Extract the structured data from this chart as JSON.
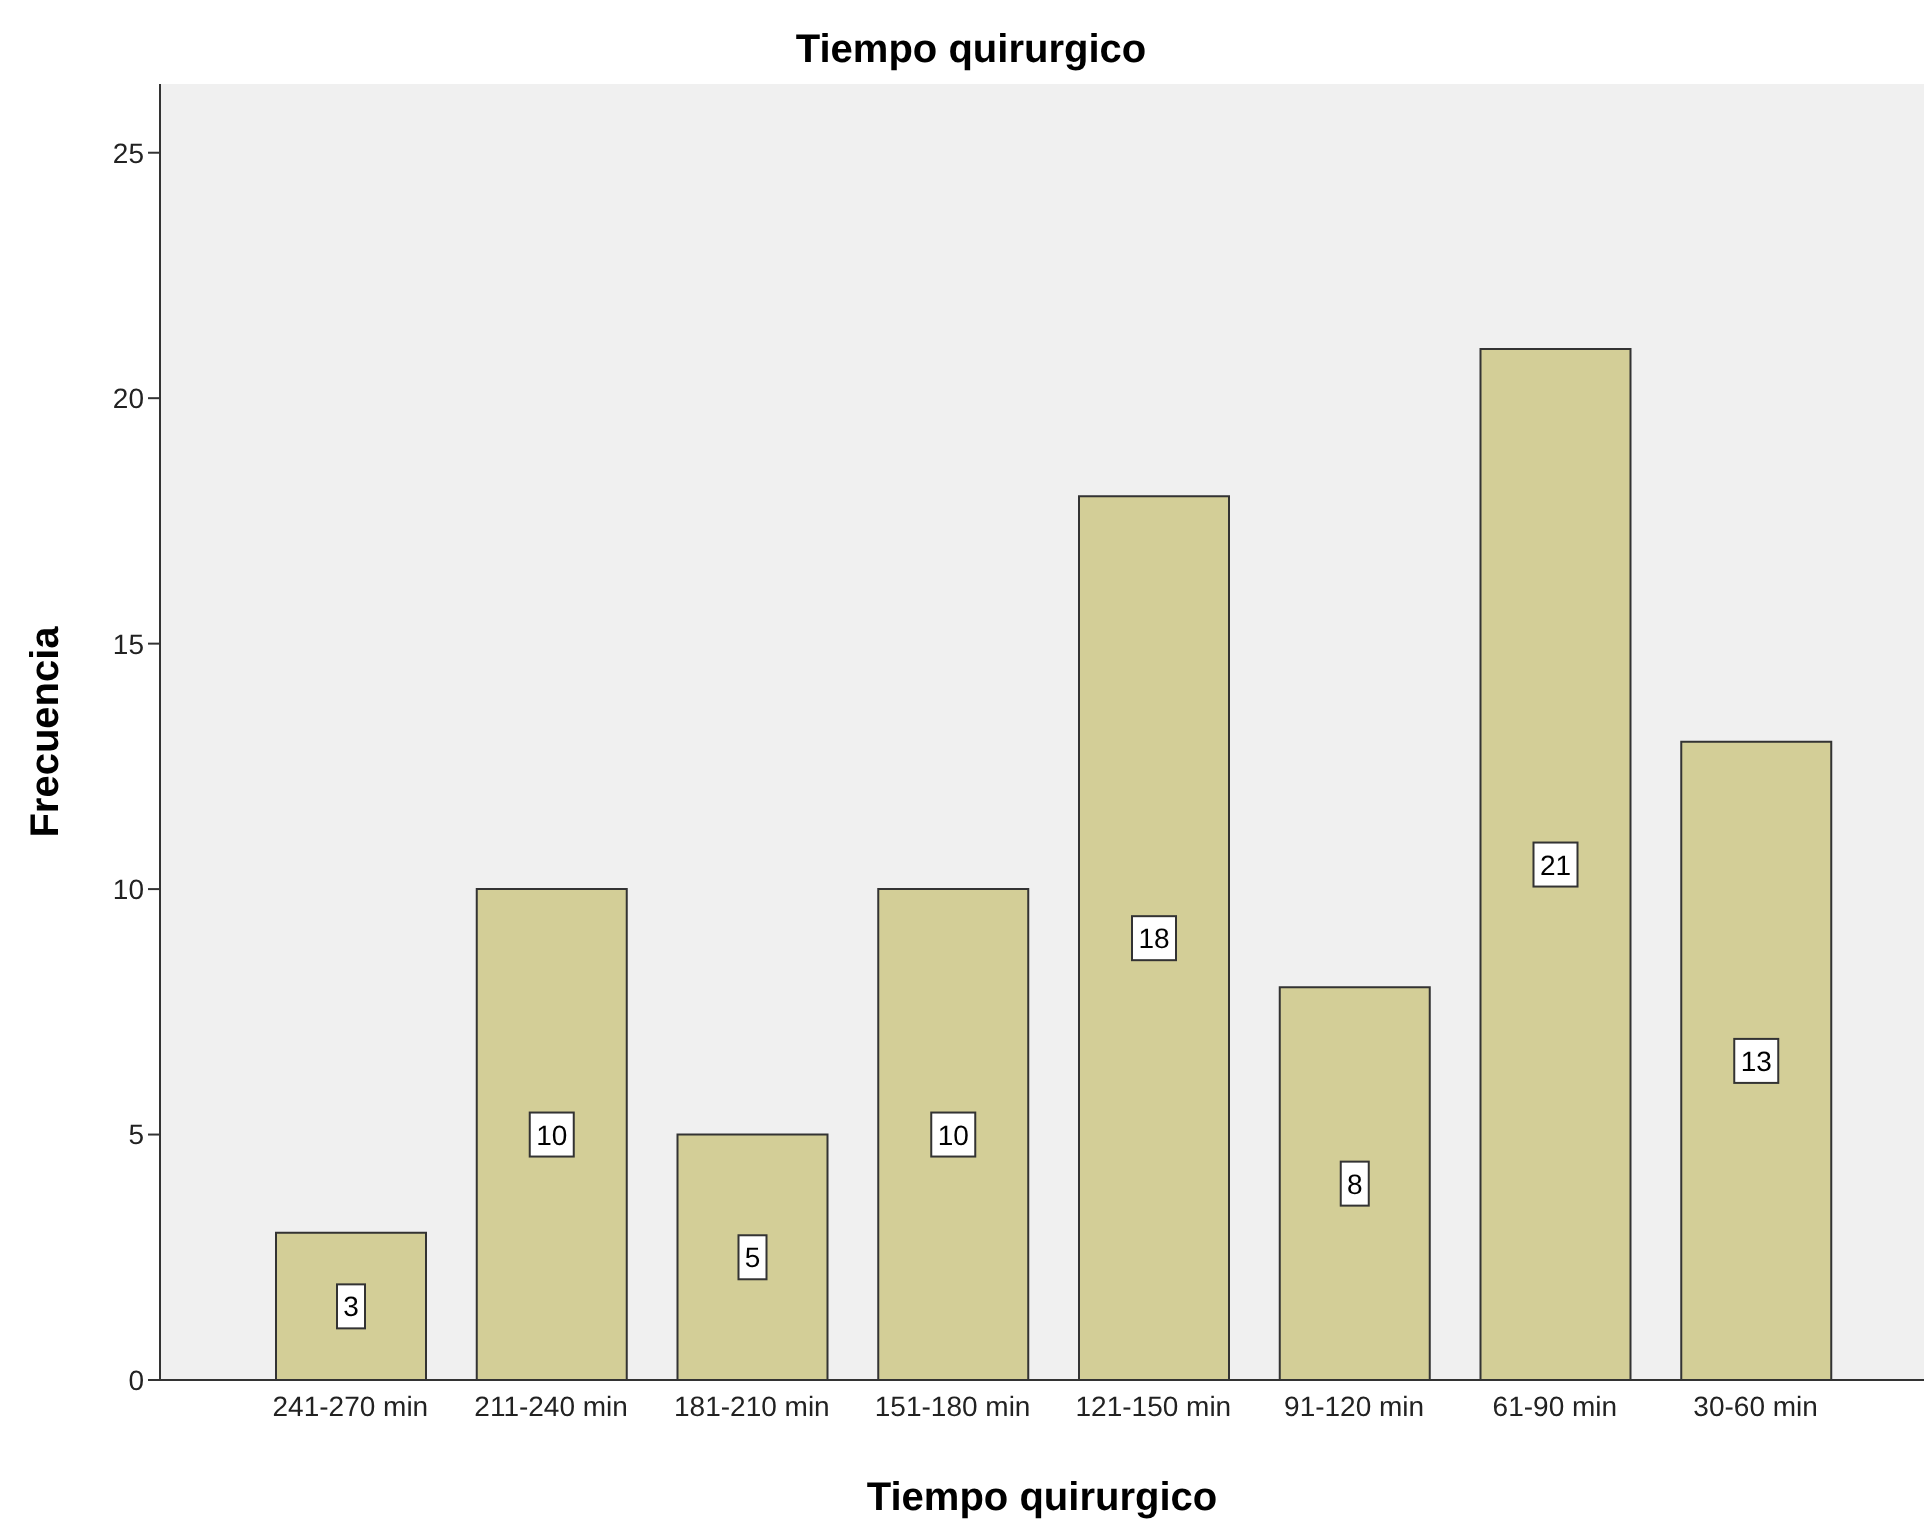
{
  "chart_data": {
    "type": "bar",
    "title": "Tiempo quirurgico",
    "xlabel": "Tiempo quirurgico",
    "ylabel": "Frecuencia",
    "categories": [
      "241-270 min",
      "211-240 min",
      "181-210 min",
      "151-180 min",
      "121-150 min",
      "91-120 min",
      "61-90 min",
      "30-60 min"
    ],
    "values": [
      3,
      10,
      5,
      10,
      18,
      8,
      21,
      13
    ],
    "color": "#d3ce97",
    "ylim": [
      0,
      26.4
    ],
    "yticks": [
      0,
      5,
      10,
      15,
      20,
      25
    ],
    "grid": false,
    "data_labels": true
  }
}
